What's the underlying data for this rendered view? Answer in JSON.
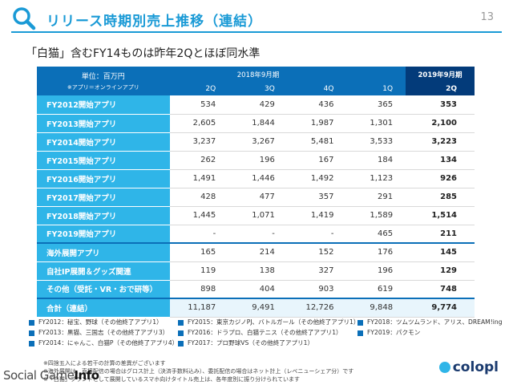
{
  "header": {
    "title": "リリース時期別売上推移（連結）",
    "page_number": "13"
  },
  "subtitle": "「白猫」含むFY14ものは昨年2Qとほぼ同水準",
  "table": {
    "unit_label": "単位：百万円",
    "unit_note": "※アプリ＝オンラインアプリ",
    "year_2018": "2018年9月期",
    "year_2019": "2019年9月期",
    "quarters": [
      "2Q",
      "3Q",
      "4Q",
      "1Q",
      "2Q"
    ],
    "rows": [
      {
        "label": "FY2012開始アプリ",
        "values": [
          "534",
          "429",
          "436",
          "365",
          "353"
        ]
      },
      {
        "label": "FY2013開始アプリ",
        "values": [
          "2,605",
          "1,844",
          "1,987",
          "1,301",
          "2,100"
        ]
      },
      {
        "label": "FY2014開始アプリ",
        "values": [
          "3,237",
          "3,267",
          "5,481",
          "3,533",
          "3,223"
        ]
      },
      {
        "label": "FY2015開始アプリ",
        "values": [
          "262",
          "196",
          "167",
          "184",
          "134"
        ]
      },
      {
        "label": "FY2016開始アプリ",
        "values": [
          "1,491",
          "1,446",
          "1,492",
          "1,123",
          "926"
        ]
      },
      {
        "label": "FY2017開始アプリ",
        "values": [
          "428",
          "477",
          "357",
          "291",
          "285"
        ]
      },
      {
        "label": "FY2018開始アプリ",
        "values": [
          "1,445",
          "1,071",
          "1,419",
          "1,589",
          "1,514"
        ]
      },
      {
        "label": "FY2019開始アプリ",
        "values": [
          "-",
          "-",
          "-",
          "465",
          "211"
        ]
      },
      {
        "label": "海外展開アプリ",
        "values": [
          "165",
          "214",
          "152",
          "176",
          "145"
        ]
      },
      {
        "label": "自社IP展開＆グッズ関連",
        "values": [
          "119",
          "138",
          "327",
          "196",
          "129"
        ]
      },
      {
        "label": "その他（受託・VR・おで研等）",
        "values": [
          "898",
          "404",
          "903",
          "619",
          "748"
        ]
      },
      {
        "label": "合計（連結）",
        "values": [
          "11,187",
          "9,491",
          "12,726",
          "9,848",
          "9,774"
        ]
      }
    ]
  },
  "legend": {
    "col1": [
      "FY2012：秘宝、野球（その他終了アプリ1）",
      "FY2013：黒猫、三国志（その他終了アプリ3）",
      "FY2014：にゃんこ、白猫P（その他終了アプリ4）"
    ],
    "col2": [
      "FY2015：東京カジノPJ、バトルガール（その他終了アプリ1）",
      "FY2016：ドラプロ、白猫テニス（その他終了アプリ1）",
      "FY2017：プロ野球VS（その他終了アプリ1）"
    ],
    "col3": [
      "FY2018：ツムツムランド、アリス、DREAM!ing",
      "FY2019：パクモン"
    ]
  },
  "notes": [
    "※四捨五入による若干の計算の差異がございます",
    "※海外展開は、直接配信の場合はグロス計上（決済手数料込み）、委託配信の場合はネット計上（レベニューシェア分）です",
    "※「白猫」ブランドとして展開しているスマホ向けタイトル売上は、各年度別に振り分けられています"
  ],
  "branding": {
    "watermark_a": "Social Game",
    "watermark_b": "Info",
    "logo": "colopl"
  },
  "colors": {
    "accent": "#1a9ad6",
    "header_dark": "#0b6fb8",
    "header_darkest": "#033b7a",
    "label_blue": "#2fb5e8"
  }
}
